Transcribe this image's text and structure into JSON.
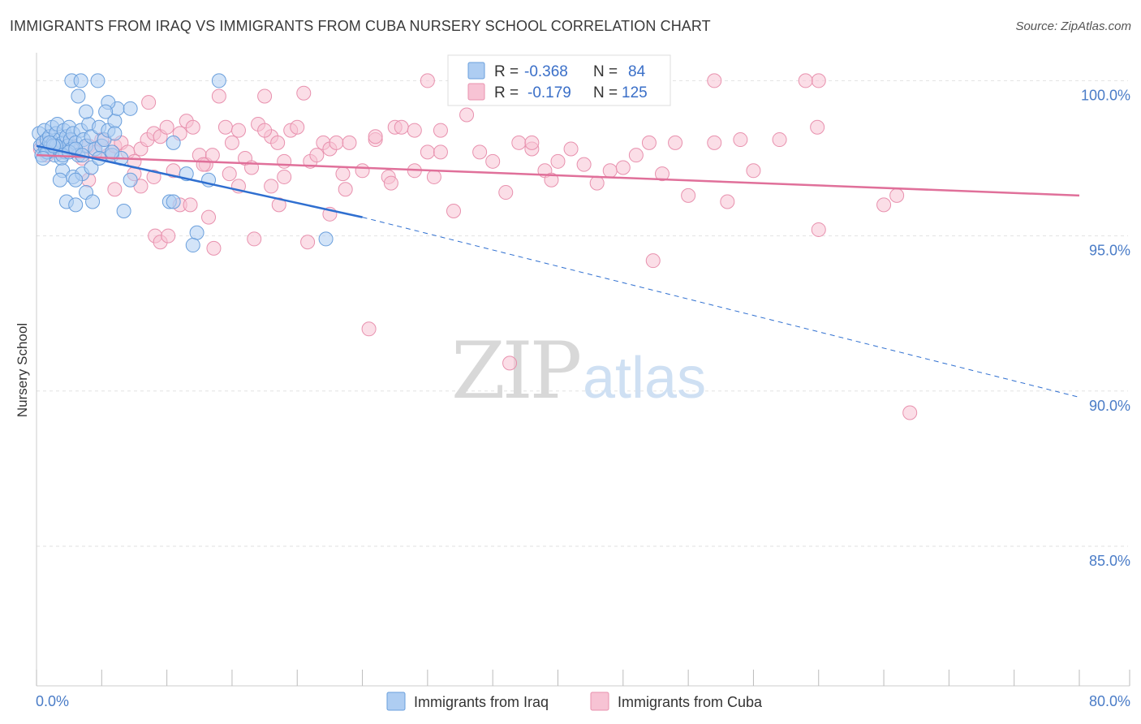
{
  "title": "IMMIGRANTS FROM IRAQ VS IMMIGRANTS FROM CUBA NURSERY SCHOOL CORRELATION CHART",
  "source": "Source: ZipAtlas.com",
  "watermark": {
    "zip": "ZIP",
    "atlas": "atlas"
  },
  "legend": {
    "r_label": "R =",
    "n_label": "N =",
    "iraq": {
      "r": "-0.368",
      "n": "84"
    },
    "cuba": {
      "r": "-0.179",
      "n": "125"
    }
  },
  "bottom_legend": {
    "iraq": "Immigrants from Iraq",
    "cuba": "Immigrants from Cuba"
  },
  "colors": {
    "iraq_fill": "#aecdf2",
    "iraq_stroke": "#6a9fdc",
    "iraq_line": "#2f6fd0",
    "cuba_fill": "#f7c3d4",
    "cuba_stroke": "#e891ae",
    "cuba_line": "#e0709a",
    "grid": "#e2e2e2",
    "tick_text": "#4a7cc7"
  },
  "chart_data": {
    "type": "scatter",
    "title": "IMMIGRANTS FROM IRAQ VS IMMIGRANTS FROM CUBA NURSERY SCHOOL CORRELATION CHART",
    "xlabel": "",
    "ylabel": "Nursery School",
    "xlim": [
      0,
      80
    ],
    "ylim": [
      80.5,
      100.9
    ],
    "x_tick_labels": [
      "0.0%",
      "80.0%"
    ],
    "y_ticks": [
      85,
      90,
      95,
      100
    ],
    "y_tick_labels": [
      "85.0%",
      "90.0%",
      "95.0%",
      "100.0%"
    ],
    "grid": true,
    "legend_position": "top-center",
    "series": [
      {
        "name": "Immigrants from Iraq",
        "r": -0.368,
        "n": 84,
        "trend": {
          "x0": 0,
          "y0": 97.9,
          "x1": 25,
          "y1": 95.6,
          "dashed_to_x": 80,
          "dashed_to_y": 89.8
        },
        "points": [
          [
            0.2,
            98.3
          ],
          [
            0.3,
            97.9
          ],
          [
            0.4,
            97.6
          ],
          [
            0.5,
            98.0
          ],
          [
            0.6,
            98.4
          ],
          [
            0.7,
            97.8
          ],
          [
            0.8,
            98.1
          ],
          [
            0.9,
            97.7
          ],
          [
            1.0,
            98.2
          ],
          [
            1.1,
            97.9
          ],
          [
            1.2,
            98.5
          ],
          [
            1.3,
            98.0
          ],
          [
            1.4,
            97.6
          ],
          [
            1.5,
            98.3
          ],
          [
            1.6,
            98.6
          ],
          [
            1.7,
            97.8
          ],
          [
            1.8,
            98.1
          ],
          [
            1.9,
            97.5
          ],
          [
            2.0,
            98.0
          ],
          [
            2.1,
            98.4
          ],
          [
            2.2,
            97.7
          ],
          [
            2.3,
            98.2
          ],
          [
            2.4,
            97.9
          ],
          [
            2.5,
            98.5
          ],
          [
            2.6,
            98.1
          ],
          [
            2.7,
            97.8
          ],
          [
            2.8,
            98.3
          ],
          [
            3.0,
            98.0
          ],
          [
            3.2,
            97.6
          ],
          [
            3.4,
            98.4
          ],
          [
            3.6,
            98.1
          ],
          [
            3.8,
            97.9
          ],
          [
            4.0,
            98.6
          ],
          [
            4.2,
            98.2
          ],
          [
            4.5,
            97.8
          ],
          [
            4.8,
            98.5
          ],
          [
            5.0,
            97.9
          ],
          [
            5.2,
            98.1
          ],
          [
            5.5,
            98.4
          ],
          [
            5.8,
            97.6
          ],
          [
            6.0,
            98.7
          ],
          [
            6.2,
            99.1
          ],
          [
            6.5,
            97.5
          ],
          [
            2.7,
            100.0
          ],
          [
            3.4,
            100.0
          ],
          [
            4.7,
            100.0
          ],
          [
            14.0,
            100.0
          ],
          [
            3.2,
            99.5
          ],
          [
            5.5,
            99.3
          ],
          [
            7.2,
            99.1
          ],
          [
            3.8,
            99.0
          ],
          [
            5.3,
            99.0
          ],
          [
            2.0,
            97.1
          ],
          [
            2.8,
            96.9
          ],
          [
            3.5,
            97.0
          ],
          [
            4.2,
            97.2
          ],
          [
            1.8,
            96.8
          ],
          [
            3.0,
            96.8
          ],
          [
            2.3,
            96.1
          ],
          [
            3.0,
            96.0
          ],
          [
            3.8,
            96.4
          ],
          [
            4.3,
            96.1
          ],
          [
            7.2,
            96.8
          ],
          [
            10.2,
            96.1
          ],
          [
            11.5,
            97.0
          ],
          [
            13.2,
            96.8
          ],
          [
            10.5,
            96.1
          ],
          [
            6.7,
            95.8
          ],
          [
            12.3,
            95.1
          ],
          [
            12.0,
            94.7
          ],
          [
            22.2,
            94.9
          ],
          [
            10.5,
            98.0
          ],
          [
            5.8,
            97.7
          ],
          [
            4.8,
            97.5
          ],
          [
            6.0,
            98.3
          ],
          [
            1.5,
            97.9
          ],
          [
            2.0,
            97.6
          ],
          [
            2.5,
            97.7
          ],
          [
            3.0,
            97.8
          ],
          [
            3.5,
            97.6
          ],
          [
            0.8,
            97.7
          ],
          [
            1.3,
            97.9
          ],
          [
            1.0,
            98.0
          ],
          [
            0.5,
            97.5
          ]
        ]
      },
      {
        "name": "Immigrants from Cuba",
        "r": -0.179,
        "n": 125,
        "trend": {
          "x0": 0,
          "y0": 97.6,
          "x1": 80,
          "y1": 96.3
        },
        "points": [
          [
            0.3,
            97.8
          ],
          [
            0.5,
            98.0
          ],
          [
            0.8,
            97.6
          ],
          [
            1.2,
            97.9
          ],
          [
            1.8,
            97.7
          ],
          [
            2.5,
            98.0
          ],
          [
            3.0,
            97.8
          ],
          [
            3.5,
            97.5
          ],
          [
            4.0,
            97.9
          ],
          [
            4.5,
            97.7
          ],
          [
            5.0,
            98.1
          ],
          [
            5.5,
            97.6
          ],
          [
            6.0,
            97.9
          ],
          [
            6.5,
            98.0
          ],
          [
            7.0,
            97.7
          ],
          [
            7.5,
            97.4
          ],
          [
            8.0,
            97.8
          ],
          [
            8.5,
            98.1
          ],
          [
            9.0,
            98.3
          ],
          [
            9.5,
            98.2
          ],
          [
            10.0,
            98.5
          ],
          [
            11.0,
            98.3
          ],
          [
            11.5,
            98.7
          ],
          [
            12.0,
            98.5
          ],
          [
            12.5,
            97.6
          ],
          [
            13.0,
            97.3
          ],
          [
            13.5,
            97.6
          ],
          [
            14.0,
            99.5
          ],
          [
            14.5,
            98.5
          ],
          [
            15.0,
            98.0
          ],
          [
            15.5,
            98.4
          ],
          [
            16.0,
            97.5
          ],
          [
            17.0,
            98.6
          ],
          [
            17.5,
            99.5
          ],
          [
            18.0,
            98.2
          ],
          [
            18.5,
            98.0
          ],
          [
            19.0,
            97.4
          ],
          [
            19.5,
            98.4
          ],
          [
            20.0,
            98.5
          ],
          [
            20.5,
            99.6
          ],
          [
            21.0,
            97.4
          ],
          [
            21.5,
            97.6
          ],
          [
            22.0,
            98.0
          ],
          [
            22.5,
            97.8
          ],
          [
            23.0,
            98.0
          ],
          [
            24.0,
            98.0
          ],
          [
            25.0,
            97.1
          ],
          [
            26.0,
            98.1
          ],
          [
            27.0,
            96.9
          ],
          [
            27.5,
            98.5
          ],
          [
            28.0,
            98.5
          ],
          [
            29.0,
            97.1
          ],
          [
            30.0,
            97.7
          ],
          [
            30.5,
            96.9
          ],
          [
            31.0,
            98.4
          ],
          [
            32.0,
            95.8
          ],
          [
            33.0,
            98.9
          ],
          [
            34.0,
            97.7
          ],
          [
            35.0,
            97.4
          ],
          [
            36.0,
            96.4
          ],
          [
            37.0,
            98.0
          ],
          [
            38.0,
            97.8
          ],
          [
            39.0,
            97.1
          ],
          [
            39.5,
            96.8
          ],
          [
            40.0,
            97.4
          ],
          [
            41.0,
            97.8
          ],
          [
            42.0,
            97.3
          ],
          [
            43.0,
            96.7
          ],
          [
            44.0,
            97.1
          ],
          [
            45.0,
            97.2
          ],
          [
            46.0,
            97.6
          ],
          [
            47.0,
            98.0
          ],
          [
            48.0,
            97.0
          ],
          [
            49.0,
            98.0
          ],
          [
            50.0,
            96.3
          ],
          [
            52.0,
            98.0
          ],
          [
            53.0,
            96.1
          ],
          [
            54.0,
            98.1
          ],
          [
            55.0,
            97.1
          ],
          [
            57.0,
            98.1
          ],
          [
            60.0,
            95.2
          ],
          [
            65.0,
            96.0
          ],
          [
            66.0,
            96.3
          ],
          [
            67.0,
            89.3
          ],
          [
            60.0,
            100.0
          ],
          [
            59.0,
            100.0
          ],
          [
            30.0,
            100.0
          ],
          [
            36.0,
            100.0
          ],
          [
            52.0,
            100.0
          ],
          [
            8.6,
            99.3
          ],
          [
            4.0,
            96.8
          ],
          [
            6.0,
            96.5
          ],
          [
            7.5,
            97.0
          ],
          [
            9.0,
            96.9
          ],
          [
            10.5,
            97.1
          ],
          [
            11.0,
            96.0
          ],
          [
            11.8,
            96.0
          ],
          [
            13.2,
            95.6
          ],
          [
            15.5,
            96.6
          ],
          [
            18.0,
            96.6
          ],
          [
            18.6,
            96.0
          ],
          [
            19.0,
            96.9
          ],
          [
            22.5,
            95.7
          ],
          [
            9.1,
            95.0
          ],
          [
            9.5,
            94.8
          ],
          [
            10.1,
            95.0
          ],
          [
            13.6,
            94.6
          ],
          [
            16.7,
            94.9
          ],
          [
            20.8,
            94.8
          ],
          [
            23.7,
            96.5
          ],
          [
            27.2,
            96.7
          ],
          [
            25.5,
            92.0
          ],
          [
            36.3,
            90.9
          ],
          [
            47.3,
            94.2
          ],
          [
            59.9,
            98.5
          ],
          [
            31.0,
            97.7
          ],
          [
            29.0,
            98.4
          ],
          [
            38.0,
            98.0
          ],
          [
            26.0,
            98.2
          ],
          [
            23.5,
            97.0
          ],
          [
            17.5,
            98.4
          ],
          [
            16.5,
            97.2
          ],
          [
            14.8,
            97.0
          ],
          [
            12.8,
            97.3
          ],
          [
            8.0,
            96.6
          ]
        ]
      }
    ]
  }
}
